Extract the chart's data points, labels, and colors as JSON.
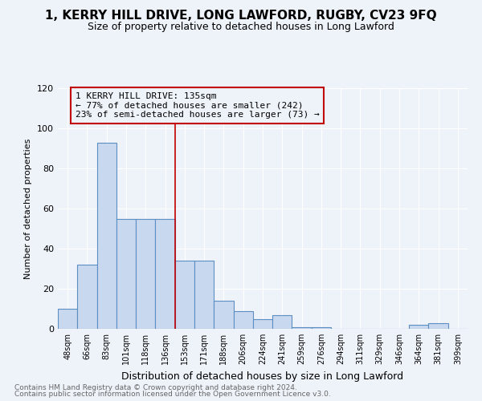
{
  "title": "1, KERRY HILL DRIVE, LONG LAWFORD, RUGBY, CV23 9FQ",
  "subtitle": "Size of property relative to detached houses in Long Lawford",
  "xlabel": "Distribution of detached houses by size in Long Lawford",
  "ylabel": "Number of detached properties",
  "footnote1": "Contains HM Land Registry data © Crown copyright and database right 2024.",
  "footnote2": "Contains public sector information licensed under the Open Government Licence v3.0.",
  "categories": [
    "48sqm",
    "66sqm",
    "83sqm",
    "101sqm",
    "118sqm",
    "136sqm",
    "153sqm",
    "171sqm",
    "188sqm",
    "206sqm",
    "224sqm",
    "241sqm",
    "259sqm",
    "276sqm",
    "294sqm",
    "311sqm",
    "329sqm",
    "346sqm",
    "364sqm",
    "381sqm",
    "399sqm"
  ],
  "values": [
    10,
    32,
    93,
    55,
    55,
    55,
    34,
    34,
    14,
    9,
    5,
    7,
    1,
    1,
    0,
    0,
    0,
    0,
    2,
    3,
    0
  ],
  "bar_color": "#c8d8ee",
  "bar_edge_color": "#5b8fc4",
  "highlight_color": "#c00000",
  "highlight_index": 5,
  "annotation_line1": "1 KERRY HILL DRIVE: 135sqm",
  "annotation_line2": "← 77% of detached houses are smaller (242)",
  "annotation_line3": "23% of semi-detached houses are larger (73) →",
  "ylim": [
    0,
    120
  ],
  "yticks": [
    0,
    20,
    40,
    60,
    80,
    100,
    120
  ],
  "background_color": "#eef2f9",
  "grid_color": "#ffffff",
  "title_fontsize": 11,
  "subtitle_fontsize": 9
}
